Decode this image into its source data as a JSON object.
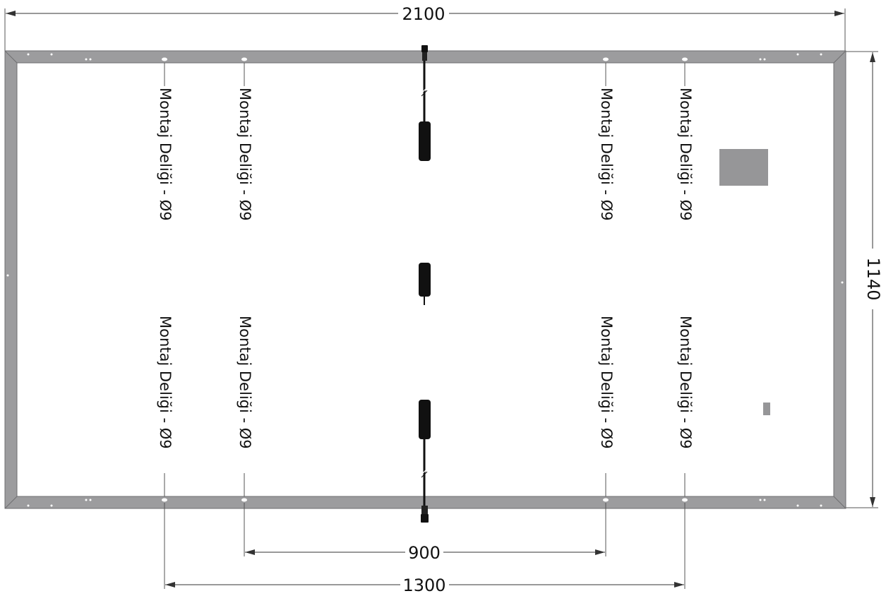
{
  "dimensions": {
    "width_label": "2100",
    "height_label": "1140",
    "inner_hole_spacing_label": "900",
    "outer_hole_spacing_label": "1300"
  },
  "mounting_holes": {
    "label": "Montaj Deliği - Ø9",
    "count": 8
  },
  "colors": {
    "frame": "#9c9c9e",
    "frame_edge": "#6e6e70",
    "connector": "#111111",
    "dimension_line": "#333333",
    "label_box": "#969698"
  }
}
